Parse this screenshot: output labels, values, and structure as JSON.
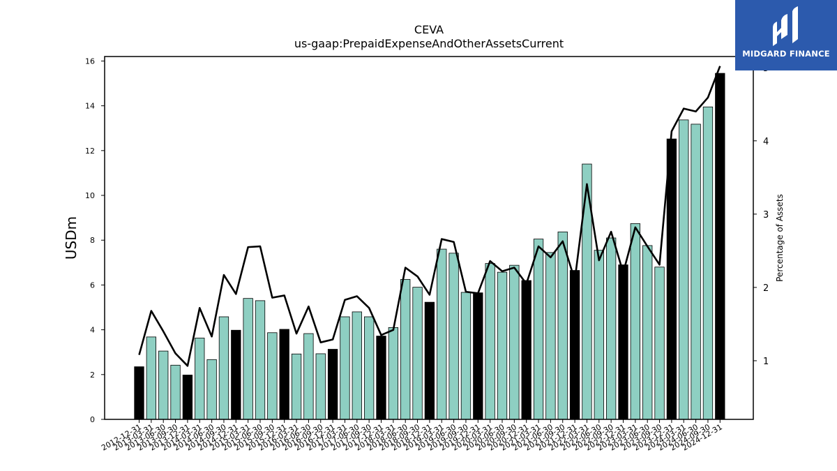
{
  "logo": {
    "text": "MIDGARD FINANCE"
  },
  "colors": {
    "bar": "#8ecfc2",
    "bar_highlight": "#000000",
    "line": "#000000",
    "logo_bg": "#2c5aad"
  },
  "chart_data": {
    "type": "bar",
    "title": "CEVA",
    "subtitle": "us-gaap:PrepaidExpenseAndOtherAssetsCurrent",
    "ylabel": "USDm",
    "y2label": "Percentage of Assets",
    "ylim": [
      0,
      16.2
    ],
    "y2lim": [
      0.2,
      5.15
    ],
    "yticks": [
      0,
      2,
      4,
      6,
      8,
      10,
      12,
      14,
      16
    ],
    "y2ticks": [
      1,
      2,
      3,
      4,
      5
    ],
    "grid": false,
    "categories": [
      "2012-12-31",
      "2013-03-31",
      "2013-06-30",
      "2013-09-30",
      "2013-12-31",
      "2014-03-31",
      "2014-06-30",
      "2014-09-30",
      "2014-12-31",
      "2015-03-31",
      "2015-06-30",
      "2015-09-30",
      "2015-12-31",
      "2016-03-31",
      "2016-06-30",
      "2016-09-30",
      "2016-12-31",
      "2017-03-31",
      "2017-06-30",
      "2017-09-30",
      "2017-12-31",
      "2018-03-31",
      "2018-06-30",
      "2018-09-30",
      "2018-12-31",
      "2019-03-31",
      "2019-06-30",
      "2019-09-30",
      "2019-12-31",
      "2020-03-31",
      "2020-06-30",
      "2020-09-30",
      "2020-12-31",
      "2021-03-31",
      "2021-06-30",
      "2021-09-30",
      "2021-12-31",
      "2022-03-31",
      "2022-06-30",
      "2022-09-30",
      "2022-12-31",
      "2023-03-31",
      "2023-06-30",
      "2023-09-30",
      "2023-12-31",
      "2024-03-31",
      "2024-06-30",
      "2024-09-30",
      "2024-12-31"
    ],
    "series": [
      {
        "type": "bar",
        "axis": "left",
        "values": [
          2.35,
          3.68,
          3.05,
          2.42,
          1.98,
          3.63,
          2.67,
          4.58,
          3.98,
          5.4,
          5.3,
          3.87,
          4.02,
          2.92,
          3.83,
          2.93,
          3.13,
          4.58,
          4.8,
          4.58,
          3.72,
          4.1,
          6.25,
          5.9,
          5.23,
          7.6,
          7.42,
          5.67,
          5.65,
          6.96,
          6.57,
          6.88,
          6.2,
          8.05,
          7.45,
          8.37,
          6.65,
          11.4,
          7.55,
          8.1,
          6.9,
          8.74,
          7.76,
          6.8,
          12.52,
          13.37,
          13.18,
          13.95,
          15.45
        ],
        "highlight": [
          true,
          false,
          false,
          false,
          true,
          false,
          false,
          false,
          true,
          false,
          false,
          false,
          true,
          false,
          false,
          false,
          true,
          false,
          false,
          false,
          true,
          false,
          false,
          false,
          true,
          false,
          false,
          false,
          true,
          false,
          false,
          false,
          true,
          false,
          false,
          false,
          true,
          false,
          false,
          false,
          true,
          false,
          false,
          false,
          true,
          false,
          false,
          false,
          true
        ]
      },
      {
        "type": "line",
        "axis": "right",
        "values": [
          1.08,
          1.68,
          1.4,
          1.1,
          0.93,
          1.72,
          1.33,
          2.17,
          1.91,
          2.55,
          2.56,
          1.86,
          1.89,
          1.37,
          1.74,
          1.25,
          1.29,
          1.83,
          1.88,
          1.72,
          1.35,
          1.42,
          2.27,
          2.15,
          1.9,
          2.66,
          2.62,
          1.94,
          1.92,
          2.36,
          2.22,
          2.27,
          2.05,
          2.56,
          2.41,
          2.63,
          2.1,
          3.41,
          2.37,
          2.76,
          2.2,
          2.82,
          2.56,
          2.31,
          4.13,
          4.44,
          4.4,
          4.59,
          5.02
        ]
      }
    ]
  }
}
